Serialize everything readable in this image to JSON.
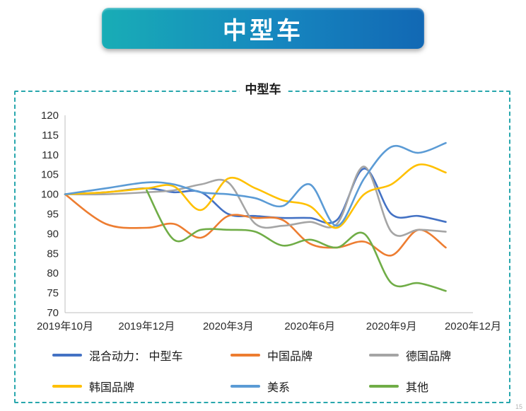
{
  "banner": {
    "title": "中型车"
  },
  "page_number": "15",
  "chart_data": {
    "type": "line",
    "title": "中型车",
    "xlabel": "",
    "ylabel": "",
    "ylim": [
      70,
      120
    ],
    "ytick_step": 5,
    "grid": false,
    "legend_position": "bottom",
    "x_axis_labels": [
      "2019年10月",
      "2019年12月",
      "2020年3月",
      "2020年6月",
      "2020年9月",
      "2020年12月"
    ],
    "x_label_month_index": [
      0,
      2,
      5,
      8,
      11,
      14
    ],
    "x_months": [
      "2019-10",
      "2019-11",
      "2019-12",
      "2020-01",
      "2020-02",
      "2020-03",
      "2020-04",
      "2020-05",
      "2020-06",
      "2020-07",
      "2020-08",
      "2020-09",
      "2020-10",
      "2020-11"
    ],
    "axis_color": "#bfbfbf",
    "series": [
      {
        "name": "混合动力： 中型车",
        "color": "#4472C4",
        "values": [
          100,
          100.5,
          101.5,
          100.5,
          100.5,
          95,
          94.5,
          94,
          94,
          93.5,
          106.5,
          95,
          94.5,
          93
        ]
      },
      {
        "name": "中国品牌",
        "color": "#ED7D31",
        "values": [
          100,
          92.5,
          91.5,
          92.5,
          89,
          94.5,
          94,
          93.5,
          87.5,
          86.5,
          88,
          84.5,
          91,
          86.5
        ]
      },
      {
        "name": "德国品牌",
        "color": "#A5A5A5",
        "values": [
          100,
          100,
          100.5,
          101,
          102.5,
          103,
          92.5,
          92,
          93,
          92.5,
          107,
          90.5,
          91,
          90.5
        ]
      },
      {
        "name": "韩国品牌",
        "color": "#FFC000",
        "values": [
          100,
          100.5,
          101.5,
          102,
          96,
          104,
          101.5,
          98.5,
          97,
          91.5,
          100,
          102.5,
          107.5,
          105.5
        ]
      },
      {
        "name": "美系",
        "color": "#5B9BD5",
        "values": [
          100,
          101.5,
          103,
          102.5,
          100.5,
          100,
          99,
          97,
          102.5,
          92,
          104,
          112,
          110.5,
          113
        ]
      },
      {
        "name": "其他",
        "color": "#70AD47",
        "values": [
          null,
          null,
          101,
          88.5,
          91,
          91,
          90.5,
          87,
          88.5,
          86.5,
          90,
          77.5,
          77.5,
          75.5
        ]
      }
    ]
  }
}
